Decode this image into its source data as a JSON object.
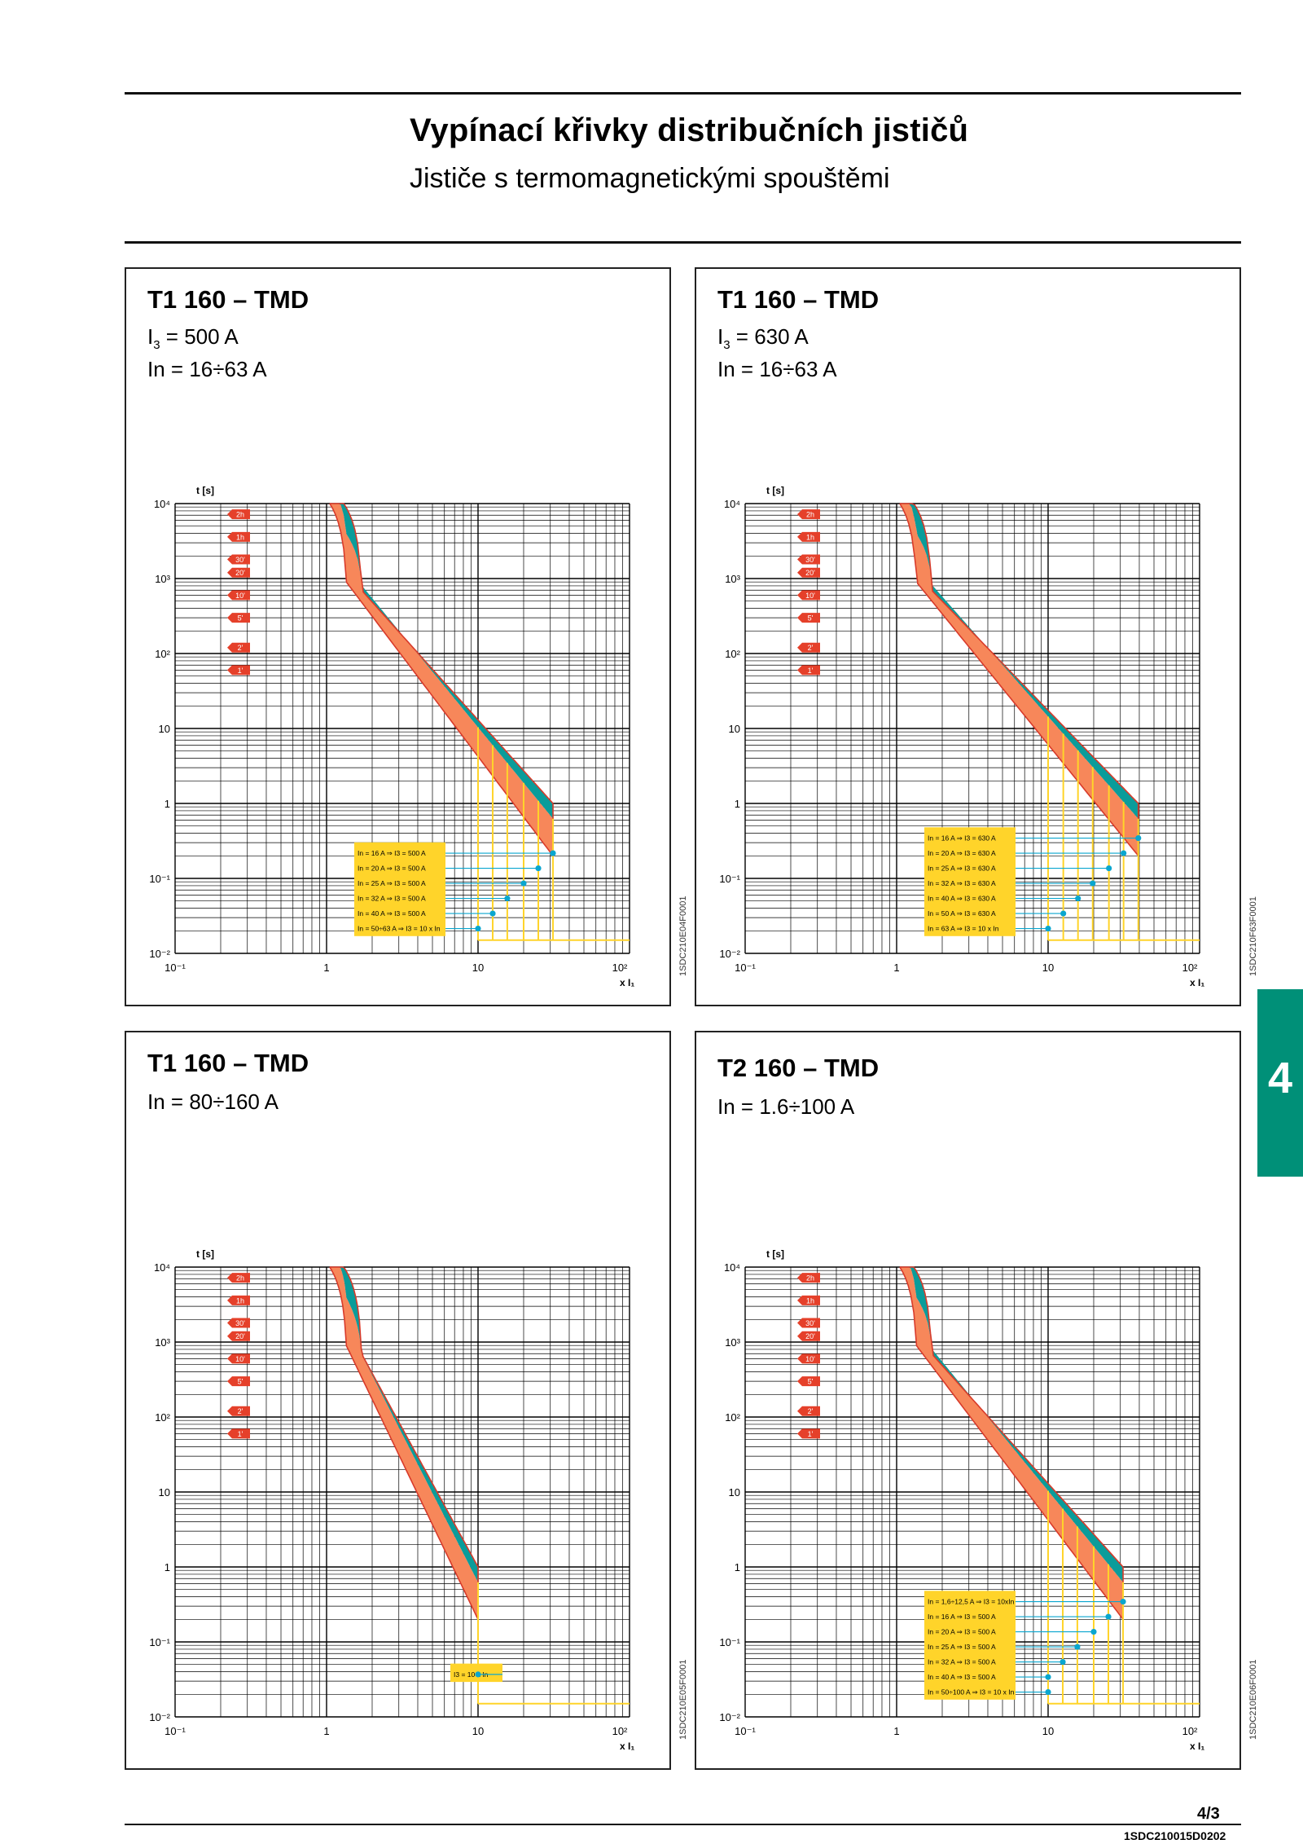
{
  "header": {
    "title": "Vypínací křivky distribučních jističů",
    "subtitle": "Jističe s termomagnetickými spouštěmi"
  },
  "side_tab": {
    "label": "4"
  },
  "footer": {
    "page_number": "4/3",
    "doc_code": "1SDC210015D0202"
  },
  "colors": {
    "orange": "#f7875a",
    "teal": "#0a9c9a",
    "curve": "#d83a2a",
    "yellow": "#ffd42a",
    "blue": "#0aa6cf",
    "tab": "#009078",
    "label_red": "#e5402a"
  },
  "axis": {
    "y_label": "t [s]",
    "x_label": "x I₁",
    "y_ticks": [
      "10⁴",
      "10³",
      "10²",
      "10",
      "1",
      "10⁻¹",
      "10⁻²"
    ],
    "x_ticks": [
      "10⁻¹",
      "1",
      "10",
      "10²"
    ],
    "time_markers": [
      "2h",
      "1h",
      "30'",
      "20'",
      "10'",
      "5'",
      "2'",
      "1'"
    ]
  },
  "panels": [
    {
      "title": "T1 160 – TMD",
      "line1": "I",
      "line1_sub": "3",
      "line1_rest": " = 500 A",
      "line2": "In = 16÷63 A",
      "code": "1SDC210E04F0001",
      "chart_data": {
        "type": "line",
        "xlim": [
          0.1,
          100
        ],
        "ylim": [
          0.01,
          10000
        ],
        "log_x": true,
        "log_y": true,
        "x_min_band": 1.05,
        "x_max_band": 31.25,
        "legend": [
          "In = 16 A ⇒ I3 = 500 A",
          "In = 20 A ⇒ I3 = 500 A",
          "In = 25 A ⇒ I3 = 500 A",
          "In = 32 A ⇒ I3 = 500 A",
          "In = 40 A ⇒ I3 = 500 A",
          "In = 50÷63 A ⇒ I3 = 10 x In"
        ],
        "magnetic_thresholds": [
          31.25,
          25,
          20,
          15.6,
          12.5,
          10
        ]
      }
    },
    {
      "title": "T1 160 – TMD",
      "line1": "I",
      "line1_sub": "3",
      "line1_rest": " = 630 A",
      "line2": "In = 16÷63 A",
      "code": "1SDC210F63F0001",
      "chart_data": {
        "type": "line",
        "xlim": [
          0.1,
          100
        ],
        "ylim": [
          0.01,
          10000
        ],
        "log_x": true,
        "log_y": true,
        "x_min_band": 1.05,
        "x_max_band": 39.4,
        "legend": [
          "In = 16 A ⇒ I3 = 630 A",
          "In = 20 A ⇒ I3 = 630 A",
          "In = 25 A ⇒ I3 = 630 A",
          "In = 32 A ⇒ I3 = 630 A",
          "In = 40 A ⇒ I3 = 630 A",
          "In = 50 A ⇒ I3 = 630 A",
          "In = 63 A ⇒ I3 = 10 x In"
        ],
        "magnetic_thresholds": [
          39.4,
          31.5,
          25.2,
          19.7,
          15.75,
          12.6,
          10
        ]
      }
    },
    {
      "title": "T1 160 – TMD",
      "line1": "In = 80÷160 A",
      "code": "1SDC210E05F0001",
      "chart_data": {
        "type": "line",
        "xlim": [
          0.1,
          100
        ],
        "ylim": [
          0.01,
          10000
        ],
        "log_x": true,
        "log_y": true,
        "x_min_band": 1.05,
        "x_max_band": 10,
        "legend": [
          "I3 = 10 x In"
        ],
        "magnetic_thresholds": [
          10
        ]
      }
    },
    {
      "title": "T2 160 – TMD",
      "line1": "In = 1.6÷100 A",
      "code": "1SDC210E06F0001",
      "chart_data": {
        "type": "line",
        "xlim": [
          0.1,
          100
        ],
        "ylim": [
          0.01,
          10000
        ],
        "log_x": true,
        "log_y": true,
        "x_min_band": 1.05,
        "x_max_band": 31.25,
        "legend": [
          "In = 1,6÷12,5 A ⇒ I3 = 10xIn",
          "In = 16 A ⇒ I3 = 500 A",
          "In = 20 A ⇒ I3 = 500 A",
          "In = 25 A ⇒ I3 = 500 A",
          "In = 32 A ⇒ I3 = 500 A",
          "In = 40 A ⇒ I3 = 500 A",
          "In = 50÷100 A ⇒ I3 = 10 x In"
        ],
        "magnetic_thresholds": [
          31.25,
          25,
          20,
          15.6,
          12.5,
          10
        ]
      }
    }
  ]
}
